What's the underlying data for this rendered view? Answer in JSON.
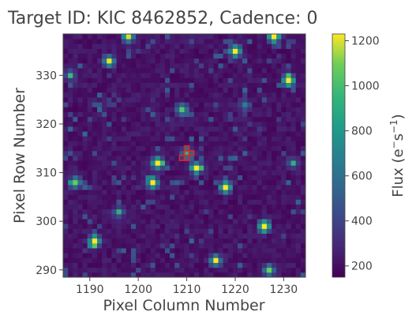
{
  "chart_data": {
    "type": "heatmap",
    "title": "Target ID: KIC 8462852, Cadence: 0",
    "xlabel": "Pixel Column Number",
    "ylabel": "Pixel Row Number",
    "xlim": [
      1184.5,
      1234.5
    ],
    "ylim": [
      288.5,
      338.5
    ],
    "xticks": [
      1190,
      1200,
      1210,
      1220,
      1230
    ],
    "yticks": [
      290,
      300,
      310,
      320,
      330
    ],
    "colormap": "viridis",
    "colorbar": {
      "label_main": "Flux (e",
      "label_sup1": "−",
      "label_mid": "s",
      "label_sup2": "−1",
      "label_end": ")",
      "range": [
        150,
        1230
      ],
      "ticks": [
        200,
        400,
        600,
        800,
        1000,
        1200
      ]
    },
    "background_flux": 230,
    "sources": [
      {
        "x": 1191,
        "y": 296,
        "flux": 1300
      },
      {
        "x": 1187,
        "y": 308,
        "flux": 900
      },
      {
        "x": 1194,
        "y": 333,
        "flux": 1000
      },
      {
        "x": 1198,
        "y": 338,
        "flux": 1000
      },
      {
        "x": 1203,
        "y": 308,
        "flux": 1150
      },
      {
        "x": 1204,
        "y": 312,
        "flux": 1250
      },
      {
        "x": 1212,
        "y": 311,
        "flux": 1150
      },
      {
        "x": 1209,
        "y": 323,
        "flux": 800
      },
      {
        "x": 1210,
        "y": 314,
        "flux": 750
      },
      {
        "x": 1216,
        "y": 292,
        "flux": 1000
      },
      {
        "x": 1218,
        "y": 307,
        "flux": 1300
      },
      {
        "x": 1220,
        "y": 335,
        "flux": 1300
      },
      {
        "x": 1226,
        "y": 299,
        "flux": 1350
      },
      {
        "x": 1227,
        "y": 290,
        "flux": 900
      },
      {
        "x": 1228,
        "y": 338,
        "flux": 1350
      },
      {
        "x": 1231,
        "y": 329,
        "flux": 1350
      },
      {
        "x": 1196,
        "y": 302,
        "flux": 500
      },
      {
        "x": 1222,
        "y": 324,
        "flux": 450
      },
      {
        "x": 1186,
        "y": 330,
        "flux": 450
      },
      {
        "x": 1232,
        "y": 312,
        "flux": 400
      }
    ],
    "aperture_color": "#d62728",
    "aperture_pixels": [
      [
        1209,
        313
      ],
      [
        1210,
        313
      ],
      [
        1210,
        314
      ],
      [
        1211,
        314
      ],
      [
        1210,
        315
      ]
    ]
  }
}
